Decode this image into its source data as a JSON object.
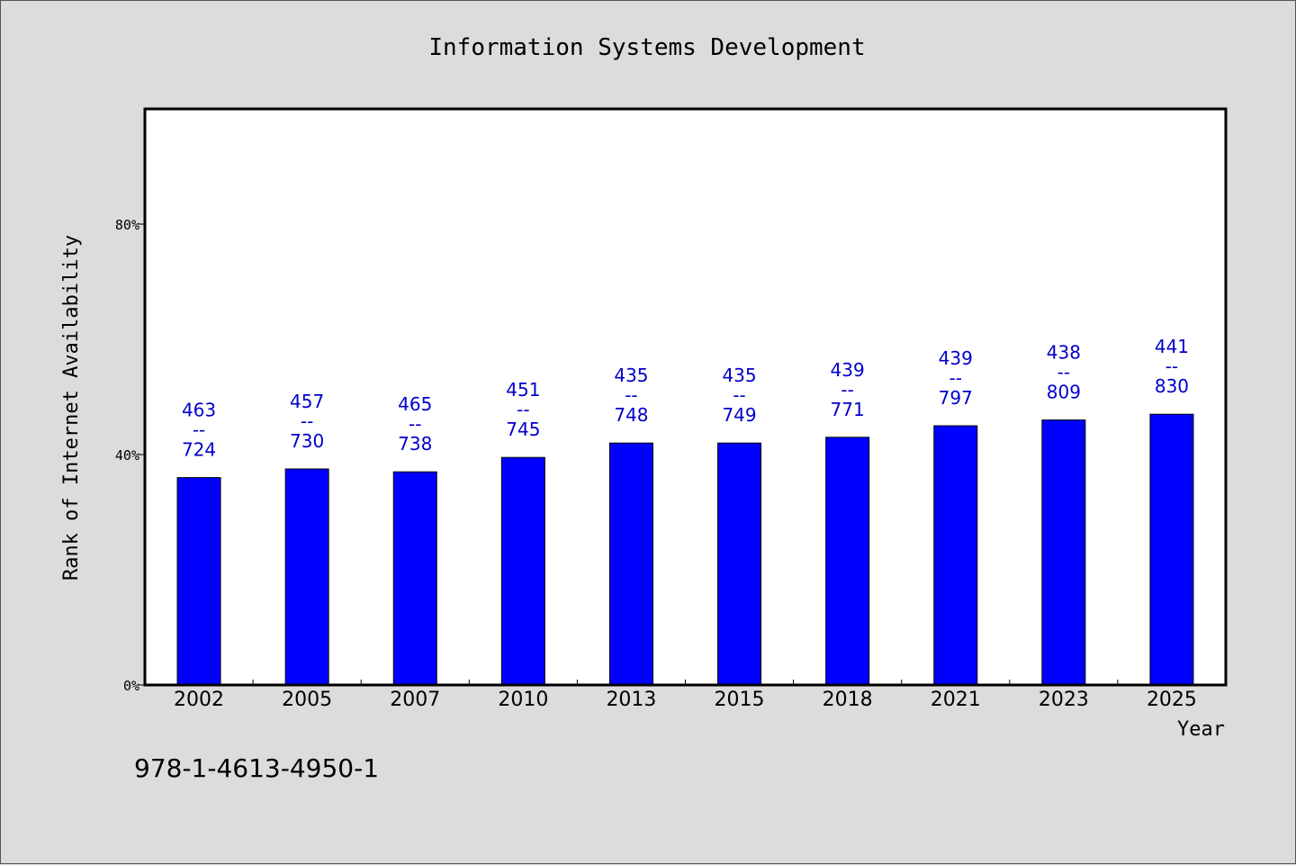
{
  "chart_data": {
    "type": "bar",
    "title": "Information Systems Development",
    "xlabel": "Year",
    "ylabel": "Rank of Internet Availability",
    "categories": [
      "2002",
      "2005",
      "2007",
      "2010",
      "2013",
      "2015",
      "2018",
      "2021",
      "2023",
      "2025"
    ],
    "values": [
      36,
      37.5,
      37,
      39.5,
      42,
      42,
      43,
      45,
      46,
      47
    ],
    "data_labels": [
      {
        "top": "463",
        "mid": "--",
        "bottom": "724"
      },
      {
        "top": "457",
        "mid": "--",
        "bottom": "730"
      },
      {
        "top": "465",
        "mid": "--",
        "bottom": "738"
      },
      {
        "top": "451",
        "mid": "--",
        "bottom": "745"
      },
      {
        "top": "435",
        "mid": "--",
        "bottom": "748"
      },
      {
        "top": "435",
        "mid": "--",
        "bottom": "749"
      },
      {
        "top": "439",
        "mid": "--",
        "bottom": "771"
      },
      {
        "top": "439",
        "mid": "--",
        "bottom": "797"
      },
      {
        "top": "438",
        "mid": "--",
        "bottom": "809"
      },
      {
        "top": "441",
        "mid": "--",
        "bottom": "830"
      }
    ],
    "ylim": [
      0,
      100
    ],
    "yticks": [
      0,
      40,
      80
    ],
    "ytick_labels": [
      "0%",
      "40%",
      "80%"
    ],
    "grid": false,
    "bar_color": "#0000ff",
    "label_color": "#0000cc",
    "footer_text": "978-1-4613-4950-1"
  }
}
